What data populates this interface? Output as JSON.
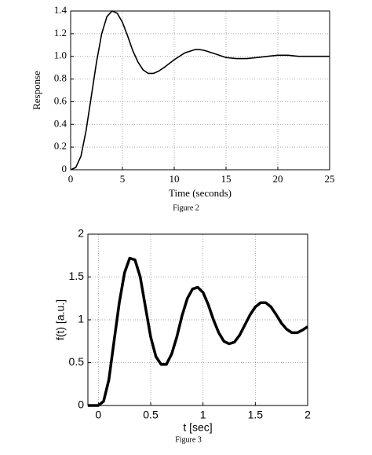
{
  "chart_data": [
    {
      "type": "line",
      "caption": "Figure 2",
      "xlabel": "Time (seconds)",
      "ylabel": "Response",
      "x": [
        0,
        0.5,
        1,
        1.5,
        2,
        2.5,
        3,
        3.5,
        4,
        4.5,
        5,
        5.5,
        6,
        6.5,
        7,
        7.5,
        8,
        8.5,
        9,
        10,
        11,
        12,
        12.5,
        13,
        14,
        15,
        16,
        17,
        18,
        19,
        20,
        21,
        22,
        23,
        24,
        25
      ],
      "values": [
        0,
        0.02,
        0.12,
        0.35,
        0.65,
        0.95,
        1.2,
        1.35,
        1.4,
        1.38,
        1.3,
        1.18,
        1.05,
        0.95,
        0.88,
        0.85,
        0.85,
        0.87,
        0.9,
        0.97,
        1.03,
        1.06,
        1.06,
        1.05,
        1.02,
        0.99,
        0.98,
        0.98,
        0.99,
        1.0,
        1.01,
        1.01,
        1.0,
        1.0,
        1.0,
        1.0
      ],
      "color": "#000000",
      "xlim": [
        0,
        25
      ],
      "xticks": [
        0,
        5,
        10,
        15,
        20,
        25
      ],
      "ylim": [
        0,
        1.4
      ],
      "yticks": [
        0,
        0.2,
        0.4,
        0.6,
        0.8,
        {
          "value": 1,
          "label": "1.0"
        },
        1.2,
        1.4
      ],
      "grid": true
    },
    {
      "type": "line",
      "caption": "Figure 3",
      "xlabel": "t [sec]",
      "ylabel": "f(t) [a.u.]",
      "x": [
        -0.1,
        0,
        0.05,
        0.1,
        0.15,
        0.2,
        0.25,
        0.3,
        0.35,
        0.4,
        0.45,
        0.5,
        0.55,
        0.6,
        0.65,
        0.7,
        0.75,
        0.8,
        0.85,
        0.9,
        0.95,
        1,
        1.05,
        1.1,
        1.15,
        1.2,
        1.25,
        1.3,
        1.35,
        1.4,
        1.45,
        1.5,
        1.55,
        1.6,
        1.65,
        1.7,
        1.75,
        1.8,
        1.85,
        1.9,
        1.95,
        2
      ],
      "values": [
        0,
        0,
        0.05,
        0.3,
        0.75,
        1.2,
        1.55,
        1.72,
        1.7,
        1.5,
        1.15,
        0.8,
        0.57,
        0.48,
        0.48,
        0.6,
        0.8,
        1.05,
        1.25,
        1.36,
        1.38,
        1.32,
        1.18,
        1,
        0.85,
        0.75,
        0.72,
        0.74,
        0.82,
        0.94,
        1.06,
        1.15,
        1.2,
        1.2,
        1.15,
        1.06,
        0.96,
        0.89,
        0.85,
        0.85,
        0.88,
        0.92
      ],
      "color": "#000000",
      "xlim": [
        -0.1,
        2
      ],
      "xticks": [
        0,
        0.5,
        1,
        1.5,
        2
      ],
      "ylim": [
        0,
        2
      ],
      "yticks": [
        0,
        0.5,
        1,
        1.5,
        2
      ],
      "grid": true
    }
  ]
}
